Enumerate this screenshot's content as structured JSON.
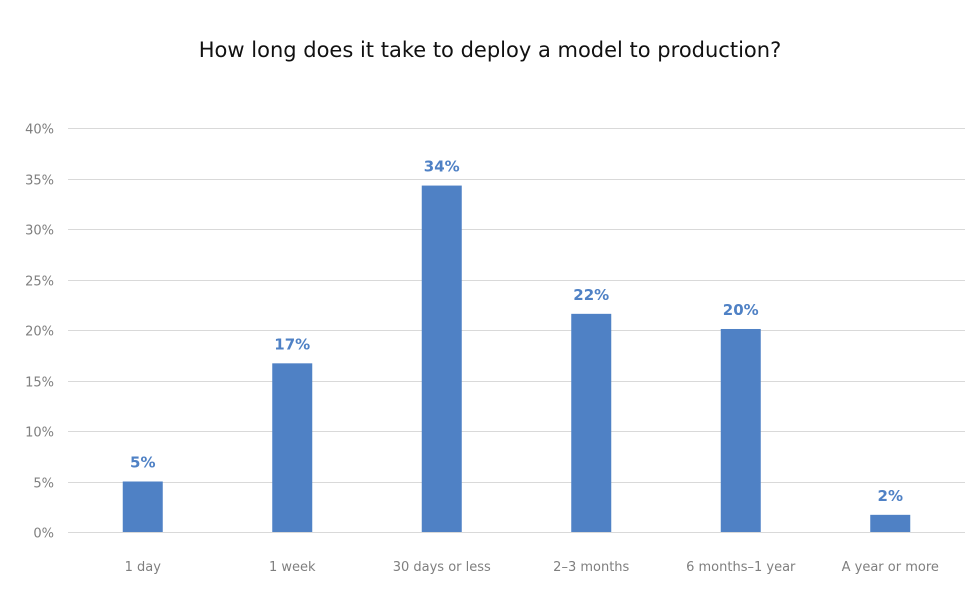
{
  "chart_data": {
    "type": "bar",
    "title": "How long does it take to deploy a model to production?",
    "xlabel": "",
    "ylabel": "",
    "categories": [
      "1 day",
      "1 week",
      "30 days or less",
      "2–3 months",
      "6 months–1 year",
      "A year or more"
    ],
    "values": [
      5,
      16.7,
      34.3,
      21.6,
      20.1,
      1.7
    ],
    "data_labels": [
      "5%",
      "17%",
      "34%",
      "22%",
      "20%",
      "2%"
    ],
    "ylim": [
      0,
      40
    ],
    "yticks": [
      0,
      5,
      10,
      15,
      20,
      25,
      30,
      35,
      40
    ],
    "ytick_labels": [
      "0%",
      "5%",
      "10%",
      "15%",
      "20%",
      "25%",
      "30%",
      "35%",
      "40%"
    ],
    "grid": true,
    "legend": "none",
    "colors": {
      "bar": "#4f81c5",
      "label": "#4f81c5",
      "grid": "#d9d9d9",
      "tick": "#7f7f7f"
    }
  }
}
